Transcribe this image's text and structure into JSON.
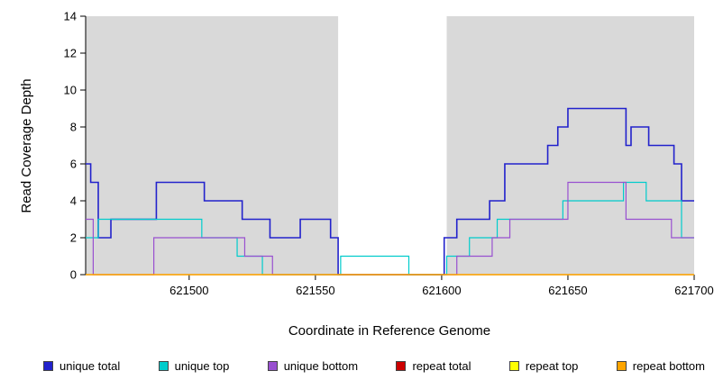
{
  "figure": {
    "background": "#ffffff",
    "plot_background": "#d9d9d9",
    "highlight_color": "#ffffff",
    "axis_color": "#000000"
  },
  "chart_data": {
    "type": "line",
    "step": true,
    "title": "",
    "xlabel": "Coordinate in Reference Genome",
    "ylabel": "Read Coverage Depth",
    "xlim": [
      621459,
      621700
    ],
    "ylim": [
      0,
      14
    ],
    "x_ticks": [
      621500,
      621550,
      621600,
      621650,
      621700
    ],
    "y_ticks": [
      0,
      2,
      4,
      6,
      8,
      10,
      12,
      14
    ],
    "grid": false,
    "legend_position": "bottom",
    "plot_bg": "#d9d9d9",
    "highlight_region": {
      "x0": 621559,
      "x1": 621602,
      "color": "#ffffff"
    },
    "series": [
      {
        "name": "unique total",
        "color": "#2222cc",
        "width": 1.6,
        "points": [
          [
            621459,
            6
          ],
          [
            621461,
            5
          ],
          [
            621464,
            2
          ],
          [
            621469,
            3
          ],
          [
            621487,
            5
          ],
          [
            621506,
            4
          ],
          [
            621521,
            3
          ],
          [
            621532,
            2
          ],
          [
            621544,
            3
          ],
          [
            621556,
            2
          ],
          [
            621559,
            0
          ],
          [
            621601,
            2
          ],
          [
            621606,
            3
          ],
          [
            621619,
            4
          ],
          [
            621625,
            6
          ],
          [
            621642,
            7
          ],
          [
            621646,
            8
          ],
          [
            621650,
            9
          ],
          [
            621673,
            7
          ],
          [
            621675,
            8
          ],
          [
            621682,
            7
          ],
          [
            621692,
            6
          ],
          [
            621695,
            4
          ],
          [
            621700,
            4
          ]
        ]
      },
      {
        "name": "unique top",
        "color": "#00cccc",
        "width": 1.2,
        "points": [
          [
            621459,
            2
          ],
          [
            621464,
            3
          ],
          [
            621505,
            2
          ],
          [
            621519,
            1
          ],
          [
            621529,
            0
          ],
          [
            621560,
            1
          ],
          [
            621587,
            0
          ],
          [
            621602,
            1
          ],
          [
            621611,
            2
          ],
          [
            621622,
            3
          ],
          [
            621648,
            4
          ],
          [
            621672,
            5
          ],
          [
            621681,
            4
          ],
          [
            621695,
            2
          ],
          [
            621700,
            2
          ]
        ]
      },
      {
        "name": "unique bottom",
        "color": "#9950d0",
        "width": 1.2,
        "points": [
          [
            621459,
            3
          ],
          [
            621462,
            0
          ],
          [
            621486,
            2
          ],
          [
            621522,
            1
          ],
          [
            621533,
            0
          ],
          [
            621606,
            1
          ],
          [
            621620,
            2
          ],
          [
            621627,
            3
          ],
          [
            621650,
            5
          ],
          [
            621673,
            3
          ],
          [
            621691,
            2
          ],
          [
            621700,
            2
          ]
        ]
      },
      {
        "name": "repeat total",
        "color": "#cc0000",
        "width": 1.2,
        "points": [
          [
            621459,
            0
          ],
          [
            621700,
            0
          ]
        ]
      },
      {
        "name": "repeat top",
        "color": "#ffff00",
        "width": 1.2,
        "points": [
          [
            621459,
            0
          ],
          [
            621700,
            0
          ]
        ]
      },
      {
        "name": "repeat bottom",
        "color": "#ffa500",
        "width": 1.2,
        "points": [
          [
            621459,
            0
          ],
          [
            621700,
            0
          ]
        ]
      }
    ]
  }
}
